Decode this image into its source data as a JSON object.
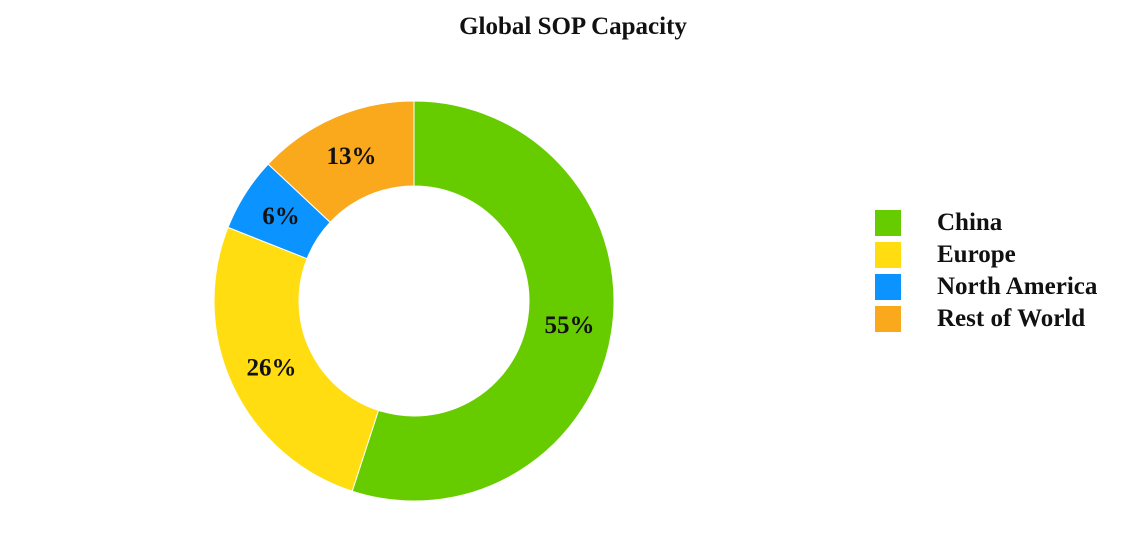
{
  "chart_data": {
    "type": "pie",
    "title": "Global SOP Capacity",
    "donut": true,
    "categories": [
      "China",
      "Europe",
      "North America",
      "Rest of World"
    ],
    "values": [
      55,
      26,
      6,
      13
    ],
    "labels": [
      "55%",
      "26%",
      "6%",
      "13%"
    ],
    "colors": [
      "#66cc00",
      "#ffdd11",
      "#0b93ff",
      "#f9a91b"
    ],
    "legend_position": "right"
  }
}
